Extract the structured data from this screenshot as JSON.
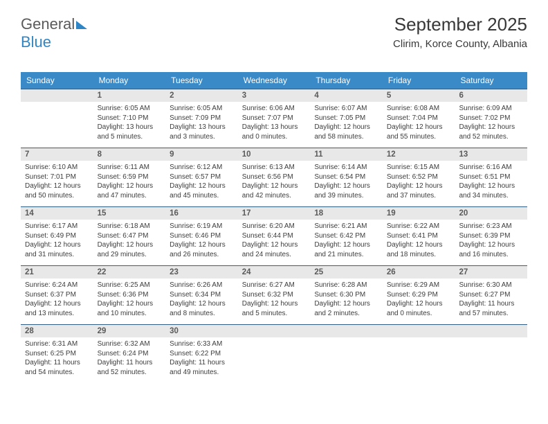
{
  "logo": {
    "part1": "General",
    "part2": "Blue"
  },
  "title": "September 2025",
  "location": "Clirim, Korce County, Albania",
  "colors": {
    "header_bg": "#3a8ac8",
    "header_text": "#ffffff",
    "daynum_bg": "#e8e8e8",
    "rule": "#2f5d88",
    "text": "#3c3c3c",
    "logo_gray": "#5a5a5a",
    "logo_blue": "#2f86c6",
    "background": "#ffffff"
  },
  "fonts": {
    "family": "Arial",
    "title_size": 26,
    "day_header_size": 12,
    "daynum_size": 11.5,
    "body_size": 10
  },
  "dayHeaders": [
    "Sunday",
    "Monday",
    "Tuesday",
    "Wednesday",
    "Thursday",
    "Friday",
    "Saturday"
  ],
  "weeks": [
    [
      null,
      {
        "n": "1",
        "sr": "Sunrise: 6:05 AM",
        "ss": "Sunset: 7:10 PM",
        "dl1": "Daylight: 13 hours",
        "dl2": "and 5 minutes."
      },
      {
        "n": "2",
        "sr": "Sunrise: 6:05 AM",
        "ss": "Sunset: 7:09 PM",
        "dl1": "Daylight: 13 hours",
        "dl2": "and 3 minutes."
      },
      {
        "n": "3",
        "sr": "Sunrise: 6:06 AM",
        "ss": "Sunset: 7:07 PM",
        "dl1": "Daylight: 13 hours",
        "dl2": "and 0 minutes."
      },
      {
        "n": "4",
        "sr": "Sunrise: 6:07 AM",
        "ss": "Sunset: 7:05 PM",
        "dl1": "Daylight: 12 hours",
        "dl2": "and 58 minutes."
      },
      {
        "n": "5",
        "sr": "Sunrise: 6:08 AM",
        "ss": "Sunset: 7:04 PM",
        "dl1": "Daylight: 12 hours",
        "dl2": "and 55 minutes."
      },
      {
        "n": "6",
        "sr": "Sunrise: 6:09 AM",
        "ss": "Sunset: 7:02 PM",
        "dl1": "Daylight: 12 hours",
        "dl2": "and 52 minutes."
      }
    ],
    [
      {
        "n": "7",
        "sr": "Sunrise: 6:10 AM",
        "ss": "Sunset: 7:01 PM",
        "dl1": "Daylight: 12 hours",
        "dl2": "and 50 minutes."
      },
      {
        "n": "8",
        "sr": "Sunrise: 6:11 AM",
        "ss": "Sunset: 6:59 PM",
        "dl1": "Daylight: 12 hours",
        "dl2": "and 47 minutes."
      },
      {
        "n": "9",
        "sr": "Sunrise: 6:12 AM",
        "ss": "Sunset: 6:57 PM",
        "dl1": "Daylight: 12 hours",
        "dl2": "and 45 minutes."
      },
      {
        "n": "10",
        "sr": "Sunrise: 6:13 AM",
        "ss": "Sunset: 6:56 PM",
        "dl1": "Daylight: 12 hours",
        "dl2": "and 42 minutes."
      },
      {
        "n": "11",
        "sr": "Sunrise: 6:14 AM",
        "ss": "Sunset: 6:54 PM",
        "dl1": "Daylight: 12 hours",
        "dl2": "and 39 minutes."
      },
      {
        "n": "12",
        "sr": "Sunrise: 6:15 AM",
        "ss": "Sunset: 6:52 PM",
        "dl1": "Daylight: 12 hours",
        "dl2": "and 37 minutes."
      },
      {
        "n": "13",
        "sr": "Sunrise: 6:16 AM",
        "ss": "Sunset: 6:51 PM",
        "dl1": "Daylight: 12 hours",
        "dl2": "and 34 minutes."
      }
    ],
    [
      {
        "n": "14",
        "sr": "Sunrise: 6:17 AM",
        "ss": "Sunset: 6:49 PM",
        "dl1": "Daylight: 12 hours",
        "dl2": "and 31 minutes."
      },
      {
        "n": "15",
        "sr": "Sunrise: 6:18 AM",
        "ss": "Sunset: 6:47 PM",
        "dl1": "Daylight: 12 hours",
        "dl2": "and 29 minutes."
      },
      {
        "n": "16",
        "sr": "Sunrise: 6:19 AM",
        "ss": "Sunset: 6:46 PM",
        "dl1": "Daylight: 12 hours",
        "dl2": "and 26 minutes."
      },
      {
        "n": "17",
        "sr": "Sunrise: 6:20 AM",
        "ss": "Sunset: 6:44 PM",
        "dl1": "Daylight: 12 hours",
        "dl2": "and 24 minutes."
      },
      {
        "n": "18",
        "sr": "Sunrise: 6:21 AM",
        "ss": "Sunset: 6:42 PM",
        "dl1": "Daylight: 12 hours",
        "dl2": "and 21 minutes."
      },
      {
        "n": "19",
        "sr": "Sunrise: 6:22 AM",
        "ss": "Sunset: 6:41 PM",
        "dl1": "Daylight: 12 hours",
        "dl2": "and 18 minutes."
      },
      {
        "n": "20",
        "sr": "Sunrise: 6:23 AM",
        "ss": "Sunset: 6:39 PM",
        "dl1": "Daylight: 12 hours",
        "dl2": "and 16 minutes."
      }
    ],
    [
      {
        "n": "21",
        "sr": "Sunrise: 6:24 AM",
        "ss": "Sunset: 6:37 PM",
        "dl1": "Daylight: 12 hours",
        "dl2": "and 13 minutes."
      },
      {
        "n": "22",
        "sr": "Sunrise: 6:25 AM",
        "ss": "Sunset: 6:36 PM",
        "dl1": "Daylight: 12 hours",
        "dl2": "and 10 minutes."
      },
      {
        "n": "23",
        "sr": "Sunrise: 6:26 AM",
        "ss": "Sunset: 6:34 PM",
        "dl1": "Daylight: 12 hours",
        "dl2": "and 8 minutes."
      },
      {
        "n": "24",
        "sr": "Sunrise: 6:27 AM",
        "ss": "Sunset: 6:32 PM",
        "dl1": "Daylight: 12 hours",
        "dl2": "and 5 minutes."
      },
      {
        "n": "25",
        "sr": "Sunrise: 6:28 AM",
        "ss": "Sunset: 6:30 PM",
        "dl1": "Daylight: 12 hours",
        "dl2": "and 2 minutes."
      },
      {
        "n": "26",
        "sr": "Sunrise: 6:29 AM",
        "ss": "Sunset: 6:29 PM",
        "dl1": "Daylight: 12 hours",
        "dl2": "and 0 minutes."
      },
      {
        "n": "27",
        "sr": "Sunrise: 6:30 AM",
        "ss": "Sunset: 6:27 PM",
        "dl1": "Daylight: 11 hours",
        "dl2": "and 57 minutes."
      }
    ],
    [
      {
        "n": "28",
        "sr": "Sunrise: 6:31 AM",
        "ss": "Sunset: 6:25 PM",
        "dl1": "Daylight: 11 hours",
        "dl2": "and 54 minutes."
      },
      {
        "n": "29",
        "sr": "Sunrise: 6:32 AM",
        "ss": "Sunset: 6:24 PM",
        "dl1": "Daylight: 11 hours",
        "dl2": "and 52 minutes."
      },
      {
        "n": "30",
        "sr": "Sunrise: 6:33 AM",
        "ss": "Sunset: 6:22 PM",
        "dl1": "Daylight: 11 hours",
        "dl2": "and 49 minutes."
      },
      null,
      null,
      null,
      null
    ]
  ]
}
